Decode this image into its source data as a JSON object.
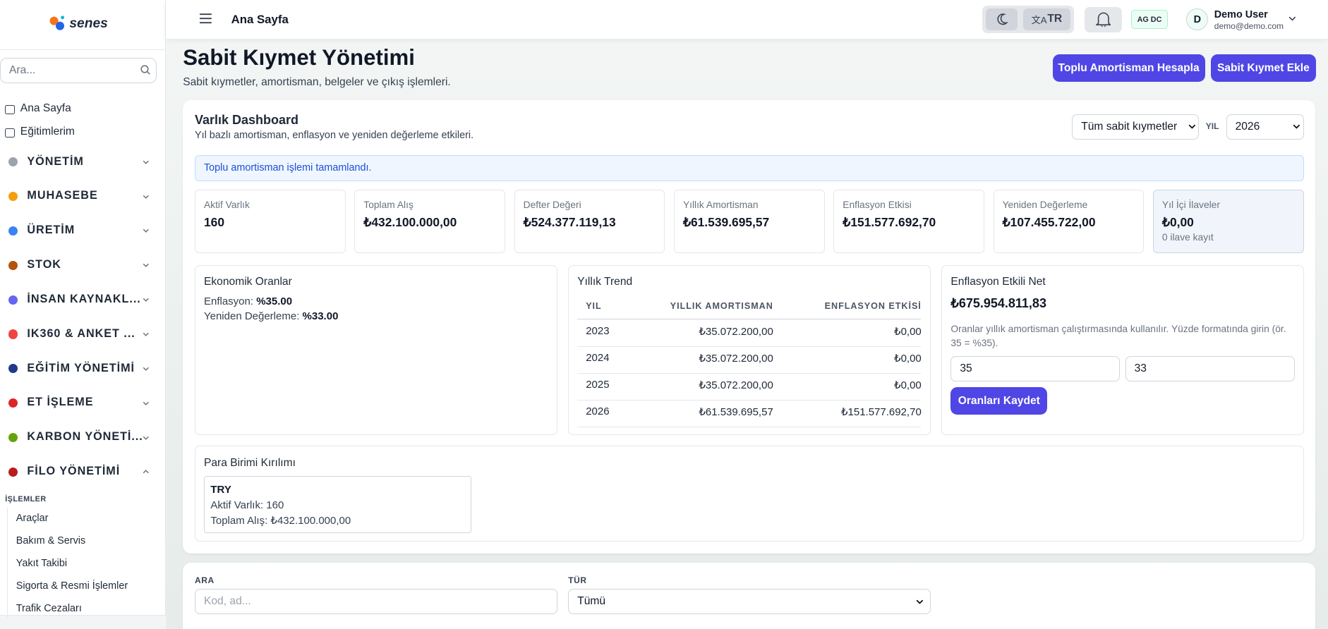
{
  "sidebar": {
    "logo": "senes",
    "search_placeholder": "Ara...",
    "links": [
      "Ana Sayfa",
      "Eğitimlerim"
    ],
    "groups": [
      "YÖNETİM",
      "MUHASEBE",
      "ÜRETİM",
      "STOK",
      "İNSAN KAYNAKL...",
      "IK360 & ANKET ...",
      "EĞİTİM YÖNETİMİ",
      "ET İŞLEME",
      "KARBON YÖNETİ...",
      "FİLO YÖNETİMİ"
    ],
    "subheader": "İŞLEMLER",
    "subitems": [
      "Araçlar",
      "Bakım & Servis",
      "Yakıt Takibi",
      "Sigorta & Resmi İşlemler",
      "Trafik Cezaları"
    ]
  },
  "header": {
    "title": "Ana Sayfa",
    "language": "TR",
    "badge": "AG DC",
    "avatar": "D",
    "user_name": "Demo User",
    "user_email": "demo@demo.com"
  },
  "page": {
    "title": "Sabit Kıymet Yönetimi",
    "subtitle": "Sabit kıymetler, amortisman, belgeler ve çıkış işlemleri.",
    "buttons": [
      "Toplu Amortisman Hesapla",
      "Sabit Kıymet Ekle"
    ]
  },
  "dashboard": {
    "title": "Varlık Dashboard",
    "subtitle": "Yıl bazlı amortisman, enflasyon ve yeniden değerleme etkileri.",
    "asset_filter": "Tüm sabit kıymetler",
    "year_label": "YIL",
    "year": "2026",
    "alert": "Toplu amortisman işlemi tamamlandı.",
    "kpis": [
      {
        "label": "Aktif Varlık",
        "value": "160"
      },
      {
        "label": "Toplam Alış",
        "value": "₺432.100.000,00"
      },
      {
        "label": "Defter Değeri",
        "value": "₺524.377.119,13"
      },
      {
        "label": "Yıllık Amortisman",
        "value": "₺61.539.695,57"
      },
      {
        "label": "Enflasyon Etkisi",
        "value": "₺151.577.692,70"
      },
      {
        "label": "Yeniden Değerleme",
        "value": "₺107.455.722,00"
      },
      {
        "label": "Yıl İçi İlaveler",
        "value": "₺0,00",
        "note": "0 ilave kayıt"
      }
    ],
    "ratios": {
      "title": "Ekonomik Oranlar",
      "items": [
        {
          "label": "Enflasyon:",
          "value": "%35.00"
        },
        {
          "label": "Yeniden Değerleme:",
          "value": "%33.00"
        }
      ]
    },
    "trend": {
      "title": "Yıllık Trend",
      "columns": [
        "YIL",
        "YILLIK AMORTISMAN",
        "ENFLASYON ETKİSİ"
      ],
      "rows": [
        [
          "2023",
          "₺35.072.200,00",
          "₺0,00"
        ],
        [
          "2024",
          "₺35.072.200,00",
          "₺0,00"
        ],
        [
          "2025",
          "₺35.072.200,00",
          "₺0,00"
        ],
        [
          "2026",
          "₺61.539.695,57",
          "₺151.577.692,70"
        ]
      ]
    },
    "inflation_net": {
      "title": "Enflasyon Etkili Net",
      "value": "₺675.954.811,83",
      "description": "Oranlar yıllık amortisman çalıştırmasında kullanılır. Yüzde formatında girin (ör. 35 = %35).",
      "inputs": [
        "35",
        "33"
      ],
      "button": "Oranları Kaydet"
    },
    "currency": {
      "title": "Para Birimi Kırılımı",
      "cards": [
        {
          "code": "TRY",
          "lines": [
            "Aktif Varlık: 160",
            "Toplam Alış: ₺432.100.000,00"
          ]
        }
      ]
    }
  },
  "filters": {
    "search_label": "ARA",
    "search_placeholder": "Kod, ad...",
    "type_label": "TÜR",
    "type_value": "Tümü"
  }
}
